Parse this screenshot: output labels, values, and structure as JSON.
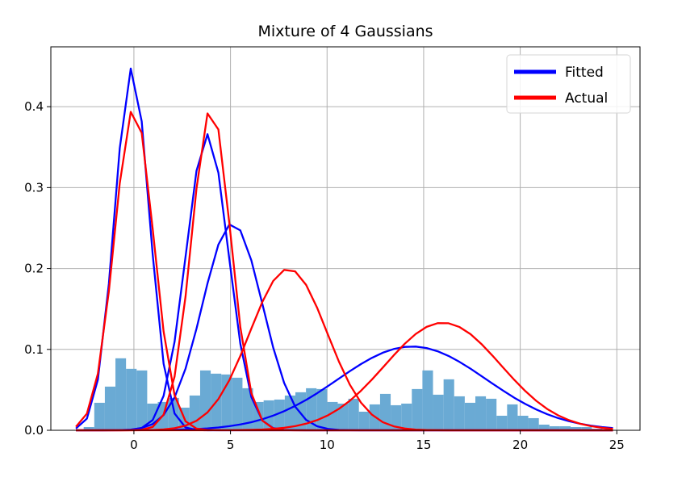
{
  "chart_data": {
    "type": "line",
    "title": "Mixture of 4 Gaussians",
    "xlabel": "",
    "ylabel": "",
    "xlim": [
      -4.3,
      26.2
    ],
    "ylim": [
      0,
      0.474
    ],
    "grid": true,
    "legend_placement": "top-right",
    "x_ticks": [
      0,
      5,
      10,
      15,
      20,
      25
    ],
    "y_ticks": [
      0.0,
      0.1,
      0.2,
      0.3,
      0.4
    ],
    "x_tick_labels": [
      "0",
      "5",
      "10",
      "15",
      "20",
      "25"
    ],
    "y_tick_labels": [
      "0.0",
      "0.1",
      "0.2",
      "0.3",
      "0.4"
    ],
    "legend": [
      {
        "label": "Fitted",
        "color": "#0000ff"
      },
      {
        "label": "Actual",
        "color": "#ff0000"
      }
    ],
    "series": [
      {
        "name": "Fitted",
        "color": "#0000ff",
        "curves": [
          {
            "mu": -0.1,
            "sigma": 0.89
          },
          {
            "mu": 3.8,
            "sigma": 1.09
          },
          {
            "mu": 5.1,
            "sigma": 1.56
          },
          {
            "mu": 14.4,
            "sigma": 3.85
          }
        ]
      },
      {
        "name": "Actual",
        "color": "#ff0000",
        "curves": [
          {
            "mu": 0.0,
            "sigma": 1.0
          },
          {
            "mu": 4.0,
            "sigma": 1.0
          },
          {
            "mu": 8.0,
            "sigma": 2.0
          },
          {
            "mu": 16.0,
            "sigma": 3.0
          }
        ]
      }
    ],
    "histogram": {
      "color": "#6aaad4",
      "bin_start": -2.6,
      "bin_width": 0.548,
      "heights": [
        0.004,
        0.034,
        0.054,
        0.089,
        0.076,
        0.074,
        0.033,
        0.035,
        0.04,
        0.028,
        0.043,
        0.074,
        0.07,
        0.069,
        0.065,
        0.052,
        0.035,
        0.037,
        0.038,
        0.043,
        0.047,
        0.052,
        0.051,
        0.035,
        0.033,
        0.039,
        0.023,
        0.032,
        0.045,
        0.031,
        0.033,
        0.051,
        0.074,
        0.044,
        0.063,
        0.042,
        0.034,
        0.042,
        0.039,
        0.018,
        0.032,
        0.018,
        0.015,
        0.007,
        0.005,
        0.005,
        0.004,
        0.004,
        0.002,
        0.001
      ]
    },
    "sample_x_range": [
      -3.0,
      24.8
    ],
    "sample_count": 50
  }
}
